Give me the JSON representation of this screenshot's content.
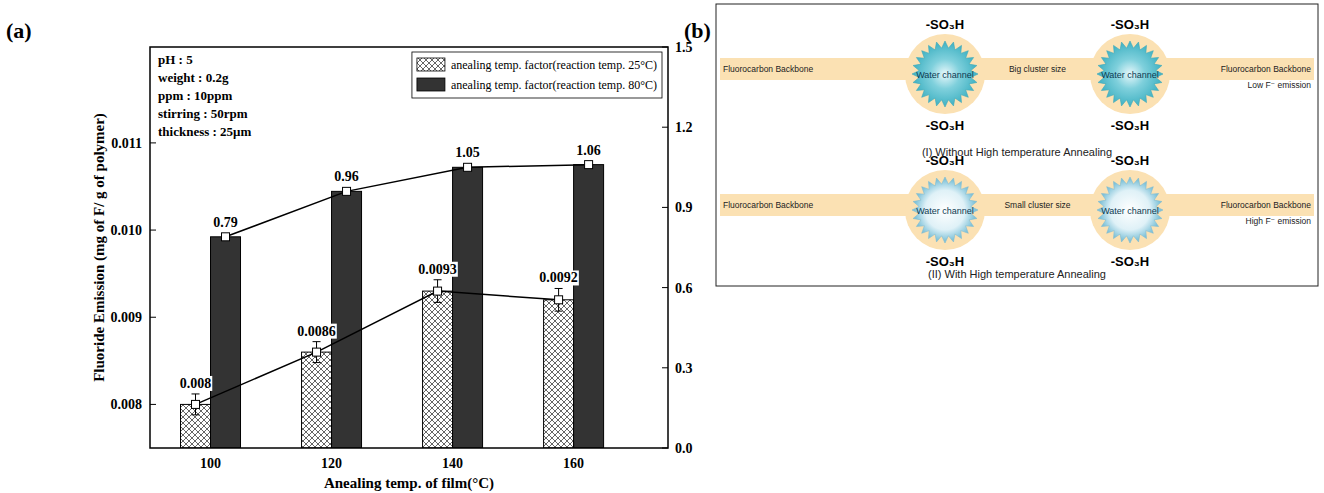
{
  "chart_data": {
    "type": "bar",
    "panel_label": "(a)",
    "y_label": "Fluoride Emission (mg of F/ g of polymer)",
    "x_label": "Anealing temp. of film(°C)",
    "annotations": [
      "pH : 5",
      "weight : 0.2g",
      "ppm : 10ppm",
      "stirring : 50rpm",
      "thickness : 25μm"
    ],
    "categories": [
      "100",
      "120",
      "140",
      "160"
    ],
    "series": [
      {
        "name": "anealing temp. factor(reaction temp. 25°C)",
        "type": "bar",
        "color": "#555555",
        "marker": "square",
        "line_style": "solid",
        "axis": "y",
        "values": [
          0.008,
          0.0086,
          0.0093,
          0.0092
        ],
        "errors": [
          0.00012,
          0.00012,
          0.00013,
          0.00013
        ]
      },
      {
        "name": "anealing temp. factor(reaction temp. 80°C)",
        "type": "bar",
        "color": "#333333",
        "marker": "square",
        "line_style": "solid",
        "axis": "y2",
        "values": [
          0.79,
          0.96,
          1.05,
          1.06
        ]
      }
    ],
    "ylim": [
      0.0075,
      0.0121
    ],
    "yticks": [
      0.008,
      0.009,
      {
        "value": 0.01,
        "label": "0.010"
      },
      0.011
    ],
    "y2lim": [
      0,
      1.5
    ],
    "y2ticks": [
      {
        "value": 0,
        "label": "0.0"
      },
      0.3,
      0.6,
      0.9,
      1.2,
      1.5
    ],
    "legend": "upper right",
    "data_labels": true,
    "grid": false
  },
  "diagram": {
    "panel_label": "(b)",
    "rows": [
      {
        "left_label": "Fluorocarbon Backbone",
        "right_label": "Fluorocarbon Backbone",
        "middle_label": "Big cluster size",
        "emission_label": "Low F⁻ emission",
        "caption": "(I) Without High temperature Annealing",
        "clusters": [
          {
            "top": "-SO₃H",
            "bottom": "-SO₃H",
            "center": "Water channel"
          },
          {
            "top": "-SO₃H",
            "bottom": "-SO₃H",
            "center": "Water channel"
          }
        ]
      },
      {
        "left_label": "Fluorocarbon Backbone",
        "right_label": "Fluorocarbon Backbone",
        "middle_label": "Small cluster size",
        "emission_label": "High F⁻ emission",
        "caption": "(II) With High temperature Annealing",
        "clusters": [
          {
            "top": "-SO₃H",
            "bottom": "-SO₃H",
            "center": "Water channel"
          },
          {
            "top": "-SO₃H",
            "bottom": "-SO₃H",
            "center": "Water channel"
          }
        ]
      }
    ]
  }
}
